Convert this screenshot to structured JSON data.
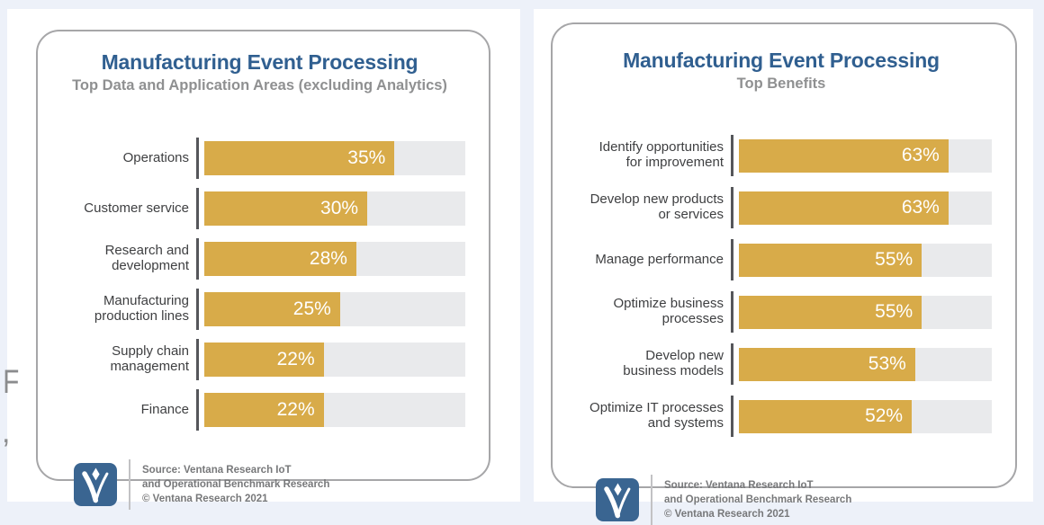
{
  "page": {
    "stray_glyphs": {
      "top": "F",
      "bottom": ","
    }
  },
  "colors": {
    "bar": "#d8ab49",
    "track": "#e9eaec",
    "title": "#305f90",
    "logo": "#3a6591",
    "page_accent": "#edf1f9"
  },
  "chart_data": [
    {
      "type": "bar",
      "orientation": "horizontal",
      "title": "Manufacturing Event Processing",
      "subtitle": "Top Data and Application Areas (excluding Analytics)",
      "categories": [
        "Operations",
        "Customer service",
        "Research and\ndevelopment",
        "Manufacturing\nproduction lines",
        "Supply chain\nmanagement",
        "Finance"
      ],
      "values": [
        35,
        30,
        28,
        25,
        22,
        22
      ],
      "value_suffix": "%",
      "xlim": [
        0,
        48
      ],
      "grid": false,
      "legend": "none",
      "source": [
        "Source: Ventana Research IoT",
        "and Operational Benchmark Research",
        "© Ventana Research 2021"
      ]
    },
    {
      "type": "bar",
      "orientation": "horizontal",
      "title": "Manufacturing Event Processing",
      "subtitle": "Top Benefits",
      "categories": [
        "Identify opportunities\nfor improvement",
        "Develop new products\nor services",
        "Manage performance",
        "Optimize business\nprocesses",
        "Develop new\nbusiness models",
        "Optimize IT processes\nand systems"
      ],
      "values": [
        63,
        63,
        55,
        55,
        53,
        52
      ],
      "value_suffix": "%",
      "xlim": [
        0,
        76
      ],
      "grid": false,
      "legend": "none",
      "source": [
        "Source: Ventana Research IoT",
        "and Operational Benchmark Research",
        "© Ventana Research 2021"
      ]
    }
  ]
}
